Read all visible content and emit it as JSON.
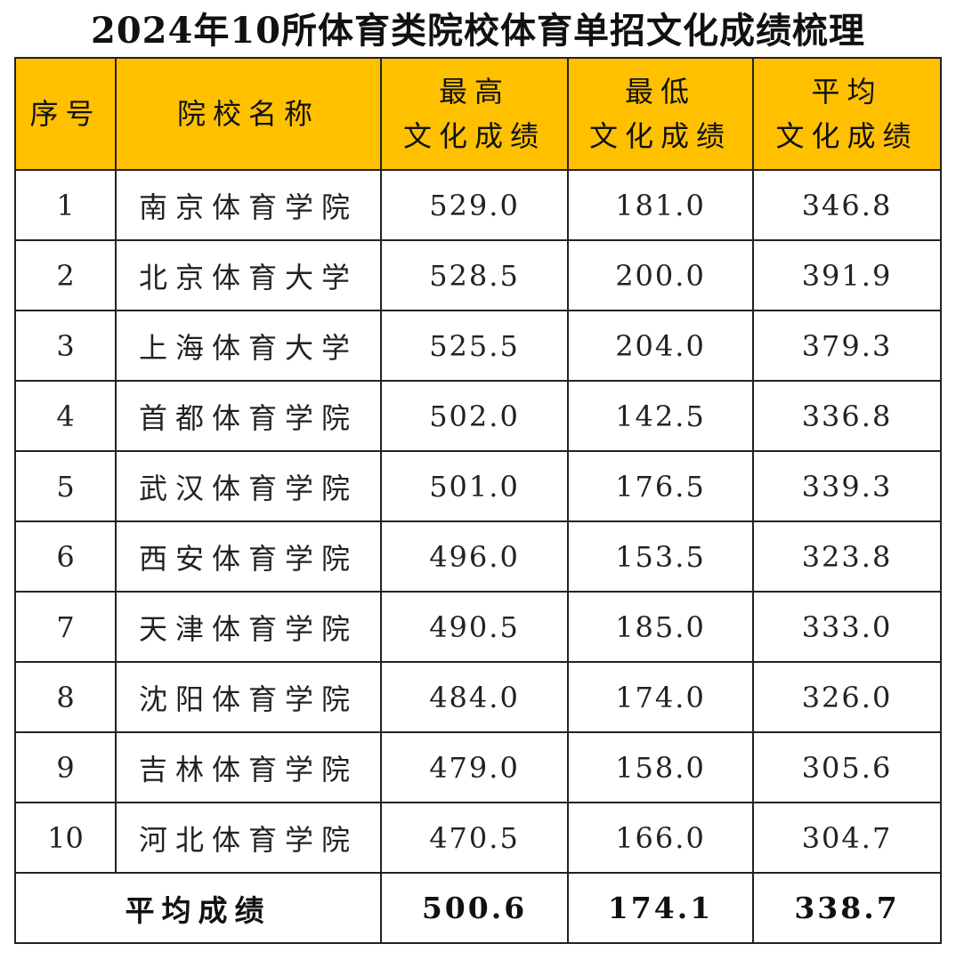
{
  "title": "2024年10所体育类院校体育单招文化成绩梳理",
  "colors": {
    "header_bg": "#ffc000",
    "border": "#222222",
    "text": "#222222"
  },
  "header": {
    "index": "序号",
    "name": "院校名称",
    "max_line1": "最高",
    "max_line2": "文化成绩",
    "min_line1": "最低",
    "min_line2": "文化成绩",
    "avg_line1": "平均",
    "avg_line2": "文化成绩"
  },
  "rows": [
    {
      "index": "1",
      "name": "南京体育学院",
      "max": "529.0",
      "min": "181.0",
      "avg": "346.8"
    },
    {
      "index": "2",
      "name": "北京体育大学",
      "max": "528.5",
      "min": "200.0",
      "avg": "391.9"
    },
    {
      "index": "3",
      "name": "上海体育大学",
      "max": "525.5",
      "min": "204.0",
      "avg": "379.3"
    },
    {
      "index": "4",
      "name": "首都体育学院",
      "max": "502.0",
      "min": "142.5",
      "avg": "336.8"
    },
    {
      "index": "5",
      "name": "武汉体育学院",
      "max": "501.0",
      "min": "176.5",
      "avg": "339.3"
    },
    {
      "index": "6",
      "name": "西安体育学院",
      "max": "496.0",
      "min": "153.5",
      "avg": "323.8"
    },
    {
      "index": "7",
      "name": "天津体育学院",
      "max": "490.5",
      "min": "185.0",
      "avg": "333.0"
    },
    {
      "index": "8",
      "name": "沈阳体育学院",
      "max": "484.0",
      "min": "174.0",
      "avg": "326.0"
    },
    {
      "index": "9",
      "name": "吉林体育学院",
      "max": "479.0",
      "min": "158.0",
      "avg": "305.6"
    },
    {
      "index": "10",
      "name": "河北体育学院",
      "max": "470.5",
      "min": "166.0",
      "avg": "304.7"
    }
  ],
  "total": {
    "label": "平均成绩",
    "max": "500.6",
    "min": "174.1",
    "avg": "338.7"
  }
}
